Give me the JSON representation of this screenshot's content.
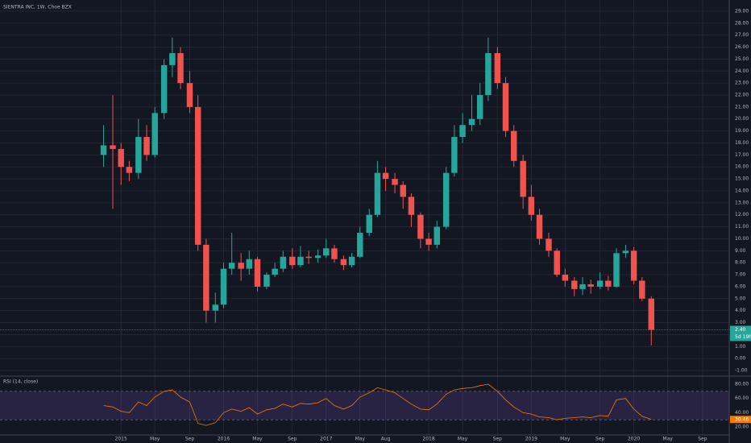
{
  "chart_data": [
    {
      "type": "candlestick",
      "title": "SIENTRA INC, 1W, Choe BZX",
      "x": [
        2014.83,
        2014.92,
        2015.0,
        2015.08,
        2015.17,
        2015.25,
        2015.33,
        2015.42,
        2015.5,
        2015.58,
        2015.67,
        2015.75,
        2015.83,
        2015.92,
        2016.0,
        2016.08,
        2016.17,
        2016.25,
        2016.33,
        2016.42,
        2016.5,
        2016.58,
        2016.67,
        2016.75,
        2016.83,
        2016.92,
        2017.0,
        2017.08,
        2017.17,
        2017.25,
        2017.33,
        2017.42,
        2017.5,
        2017.58,
        2017.67,
        2017.75,
        2017.83,
        2017.92,
        2018.0,
        2018.08,
        2018.17,
        2018.25,
        2018.33,
        2018.42,
        2018.5,
        2018.58,
        2018.67,
        2018.75,
        2018.83,
        2018.92,
        2019.0,
        2019.08,
        2019.17,
        2019.25,
        2019.33,
        2019.42,
        2019.5,
        2019.58,
        2019.67,
        2019.75,
        2019.83,
        2019.92,
        2020.0,
        2020.08,
        2020.17
      ],
      "open": [
        17.0,
        17.8,
        17.5,
        16.0,
        15.5,
        18.5,
        17.0,
        20.5,
        24.5,
        25.5,
        23.0,
        21.0,
        9.5,
        4.0,
        4.5,
        7.5,
        8.0,
        7.5,
        8.3,
        6.0,
        7.0,
        7.5,
        8.5,
        7.8,
        8.5,
        8.4,
        8.6,
        9.2,
        8.3,
        7.8,
        8.5,
        10.5,
        12.0,
        15.5,
        15.0,
        14.5,
        13.5,
        12.0,
        10.0,
        9.5,
        11.0,
        15.5,
        18.5,
        19.5,
        20.0,
        22.0,
        25.5,
        23.0,
        19.0,
        16.5,
        13.5,
        12.0,
        10.0,
        9.0,
        7.0,
        6.5,
        5.8,
        6.2,
        6.0,
        6.5,
        6.0,
        8.8,
        9.0,
        6.5,
        5.0
      ],
      "high": [
        19.5,
        22.0,
        18.0,
        16.5,
        20.0,
        19.5,
        21.0,
        25.0,
        26.8,
        26.0,
        24.0,
        22.0,
        10.0,
        5.5,
        8.0,
        10.5,
        8.8,
        9.0,
        8.5,
        7.2,
        8.0,
        9.0,
        9.2,
        9.4,
        9.0,
        9.1,
        10.0,
        9.5,
        8.6,
        8.8,
        11.0,
        12.5,
        16.5,
        16.0,
        15.5,
        14.8,
        13.8,
        12.2,
        10.5,
        11.5,
        16.0,
        19.5,
        20.5,
        22.0,
        23.0,
        26.8,
        26.0,
        23.5,
        19.5,
        17.0,
        14.5,
        12.5,
        10.5,
        9.2,
        7.5,
        6.8,
        6.8,
        6.6,
        7.2,
        6.9,
        9.2,
        9.5,
        9.3,
        6.8,
        5.2
      ],
      "low": [
        16.0,
        12.5,
        14.5,
        14.8,
        15.0,
        16.5,
        16.8,
        20.0,
        23.5,
        22.5,
        20.5,
        9.0,
        3.0,
        3.0,
        4.2,
        7.0,
        6.5,
        7.0,
        5.6,
        5.8,
        6.8,
        7.2,
        7.5,
        7.6,
        7.9,
        8.0,
        8.4,
        8.0,
        7.4,
        7.6,
        8.4,
        10.2,
        11.8,
        14.0,
        13.8,
        12.5,
        11.0,
        9.2,
        9.0,
        9.2,
        10.8,
        15.2,
        18.0,
        19.0,
        19.5,
        21.5,
        22.5,
        18.5,
        16.0,
        12.5,
        11.5,
        9.5,
        8.5,
        6.8,
        6.0,
        5.2,
        5.3,
        5.4,
        5.8,
        5.7,
        5.9,
        8.4,
        6.2,
        4.8,
        1.1
      ],
      "close": [
        17.8,
        17.5,
        16.0,
        15.5,
        18.5,
        17.0,
        20.5,
        24.5,
        25.5,
        23.0,
        21.0,
        9.5,
        4.0,
        4.5,
        7.5,
        8.0,
        7.5,
        8.3,
        6.0,
        7.0,
        7.5,
        8.5,
        7.8,
        8.5,
        8.4,
        8.6,
        9.2,
        8.3,
        7.8,
        8.5,
        10.5,
        12.0,
        15.5,
        15.0,
        14.5,
        13.5,
        12.0,
        10.0,
        9.5,
        11.0,
        15.5,
        18.5,
        19.5,
        20.0,
        22.0,
        25.5,
        23.0,
        19.0,
        16.5,
        13.5,
        12.0,
        10.0,
        9.0,
        7.0,
        6.5,
        5.8,
        6.2,
        6.0,
        6.5,
        6.0,
        8.8,
        9.0,
        6.5,
        5.0,
        2.4
      ],
      "last_price": {
        "value": 2.4,
        "label": "2.40"
      },
      "countdown": "5d 19h",
      "up_color": "#26a69a",
      "down_color": "#ef5350",
      "grid": true,
      "xlim": [
        2013.82,
        2020.93
      ],
      "ylim": [
        -1.47,
        29.6
      ],
      "xticks": [
        {
          "value": 2015.0,
          "label": "2015"
        },
        {
          "value": 2015.33,
          "label": "May"
        },
        {
          "value": 2015.67,
          "label": "Sep"
        },
        {
          "value": 2016.0,
          "label": "2016"
        },
        {
          "value": 2016.33,
          "label": "May"
        },
        {
          "value": 2016.67,
          "label": "Sep"
        },
        {
          "value": 2017.0,
          "label": "2017"
        },
        {
          "value": 2017.33,
          "label": "May"
        },
        {
          "value": 2017.58,
          "label": "Aug"
        },
        {
          "value": 2018.0,
          "label": "2018"
        },
        {
          "value": 2018.33,
          "label": "May"
        },
        {
          "value": 2018.67,
          "label": "Sep"
        },
        {
          "value": 2019.0,
          "label": "2019"
        },
        {
          "value": 2019.33,
          "label": "May"
        },
        {
          "value": 2019.67,
          "label": "Sep"
        },
        {
          "value": 2020.0,
          "label": "2020"
        },
        {
          "value": 2020.33,
          "label": "May"
        },
        {
          "value": 2020.67,
          "label": "Sep"
        }
      ],
      "yticks": [
        {
          "value": -1,
          "label": "-1.00"
        },
        {
          "value": 0,
          "label": "0.00"
        },
        {
          "value": 1,
          "label": "1.00"
        },
        {
          "value": 2,
          "label": "2.00"
        },
        {
          "value": 3,
          "label": "3.00"
        },
        {
          "value": 4,
          "label": "4.00"
        },
        {
          "value": 5,
          "label": "5.00"
        },
        {
          "value": 6,
          "label": "6.00"
        },
        {
          "value": 7,
          "label": "7.00"
        },
        {
          "value": 8,
          "label": "8.00"
        },
        {
          "value": 9,
          "label": "9.00"
        },
        {
          "value": 10,
          "label": "10.00"
        },
        {
          "value": 11,
          "label": "11.00"
        },
        {
          "value": 12,
          "label": "12.00"
        },
        {
          "value": 13,
          "label": "13.00"
        },
        {
          "value": 14,
          "label": "14.00"
        },
        {
          "value": 15,
          "label": "15.00"
        },
        {
          "value": 16,
          "label": "16.00"
        },
        {
          "value": 17,
          "label": "17.00"
        },
        {
          "value": 18,
          "label": "18.00"
        },
        {
          "value": 19,
          "label": "19.00"
        },
        {
          "value": 20,
          "label": "20.00"
        },
        {
          "value": 21,
          "label": "21.00"
        },
        {
          "value": 22,
          "label": "22.00"
        },
        {
          "value": 23,
          "label": "23.00"
        },
        {
          "value": 24,
          "label": "24.00"
        },
        {
          "value": 25,
          "label": "25.00"
        },
        {
          "value": 26,
          "label": "26.00"
        },
        {
          "value": 27,
          "label": "27.00"
        },
        {
          "value": 28,
          "label": "28.00"
        },
        {
          "value": 29,
          "label": "29.00"
        }
      ]
    },
    {
      "type": "line",
      "title": "RSI (14, close)",
      "color": "#f57c00",
      "band_color": "#7e57c2",
      "values": [
        50,
        48,
        42,
        40,
        55,
        50,
        62,
        70,
        72,
        62,
        55,
        25,
        22,
        26,
        40,
        45,
        42,
        47,
        38,
        44,
        46,
        52,
        48,
        53,
        52,
        54,
        60,
        50,
        45,
        50,
        62,
        68,
        75,
        72,
        68,
        60,
        52,
        45,
        44,
        52,
        66,
        72,
        74,
        75,
        78,
        80,
        70,
        58,
        48,
        40,
        38,
        34,
        33,
        30,
        32,
        33,
        34,
        33,
        36,
        35,
        58,
        60,
        45,
        35,
        30.46
      ],
      "last_value": {
        "value": 30.46,
        "label": "30.46"
      },
      "bands": [
        30,
        70
      ],
      "ylim": [
        8.7,
        87.9
      ],
      "yticks": [
        {
          "value": 20,
          "label": "20.00"
        },
        {
          "value": 40,
          "label": "40.00"
        },
        {
          "value": 60,
          "label": "60.00"
        },
        {
          "value": 80,
          "label": "80.00"
        }
      ]
    }
  ]
}
